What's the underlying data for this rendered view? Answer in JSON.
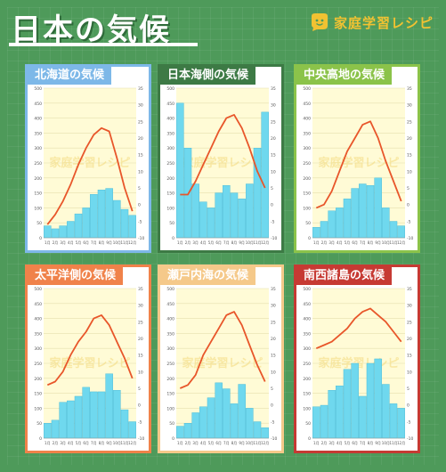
{
  "page": {
    "title": "日本の気候",
    "brand": "家庭学習レシピ",
    "watermark": "家庭学習レシピ"
  },
  "colors": {
    "background": "#4e9a5a",
    "bar": "#6fd8ee",
    "line": "#e8562a",
    "plot_bg": "#fffbd6"
  },
  "chart_data": [
    {
      "type": "bar",
      "title": "北海道の気候",
      "border_color": "#7db8e8",
      "categories": [
        "1月",
        "2月",
        "3月",
        "4月",
        "5月",
        "6月",
        "7月",
        "8月",
        "9月",
        "10月",
        "11月",
        "12月"
      ],
      "ylim": [
        0,
        500
      ],
      "y_ticks": [
        "0",
        "50",
        "100",
        "150",
        "200",
        "250",
        "300",
        "350",
        "400",
        "450",
        "500"
      ],
      "y2lim": [
        -10,
        35
      ],
      "y2_ticks": [
        "-10",
        "-5",
        "0",
        "5",
        "10",
        "15",
        "20",
        "25",
        "30",
        "35"
      ],
      "series": [
        {
          "kind": "bar",
          "values": [
            40,
            30,
            40,
            55,
            80,
            100,
            145,
            160,
            165,
            125,
            95,
            75
          ]
        },
        {
          "kind": "line",
          "values": [
            -6,
            -3,
            1,
            6,
            12,
            17,
            21,
            23,
            22,
            14,
            5,
            -2
          ]
        }
      ]
    },
    {
      "type": "bar",
      "title": "日本海側の気候",
      "border_color": "#3d7a45",
      "categories": [
        "1月",
        "2月",
        "3月",
        "4月",
        "5月",
        "6月",
        "7月",
        "8月",
        "9月",
        "10月",
        "11月",
        "12月"
      ],
      "ylim": [
        0,
        500
      ],
      "y_ticks": [
        "0",
        "50",
        "100",
        "150",
        "200",
        "250",
        "300",
        "350",
        "400",
        "450",
        "500"
      ],
      "y2lim": [
        -10,
        35
      ],
      "y2_ticks": [
        "-10",
        "-5",
        "0",
        "5",
        "10",
        "15",
        "20",
        "25",
        "30",
        "35"
      ],
      "series": [
        {
          "kind": "bar",
          "values": [
            450,
            300,
            180,
            120,
            100,
            150,
            175,
            150,
            130,
            180,
            300,
            420
          ]
        },
        {
          "kind": "line",
          "values": [
            3,
            3,
            7,
            12,
            17,
            22,
            26,
            27,
            23,
            17,
            10,
            5
          ]
        }
      ]
    },
    {
      "type": "bar",
      "title": "中央高地の気候",
      "border_color": "#8bc34a",
      "categories": [
        "1月",
        "2月",
        "3月",
        "4月",
        "5月",
        "6月",
        "7月",
        "8月",
        "9月",
        "10月",
        "11月",
        "12月"
      ],
      "ylim": [
        0,
        500
      ],
      "y_ticks": [
        "0",
        "50",
        "100",
        "150",
        "200",
        "250",
        "300",
        "350",
        "400",
        "450",
        "500"
      ],
      "y2lim": [
        -10,
        35
      ],
      "y2_ticks": [
        "-10",
        "-5",
        "0",
        "5",
        "10",
        "15",
        "20",
        "25",
        "30",
        "35"
      ],
      "series": [
        {
          "kind": "bar",
          "values": [
            35,
            55,
            90,
            100,
            130,
            165,
            180,
            175,
            200,
            100,
            55,
            40
          ]
        },
        {
          "kind": "line",
          "values": [
            -1,
            0,
            4,
            10,
            16,
            20,
            24,
            25,
            20,
            13,
            7,
            1
          ]
        }
      ]
    },
    {
      "type": "bar",
      "title": "太平洋側の気候",
      "border_color": "#f0824a",
      "categories": [
        "1月",
        "2月",
        "3月",
        "4月",
        "5月",
        "6月",
        "7月",
        "8月",
        "9月",
        "10月",
        "11月",
        "12月"
      ],
      "ylim": [
        0,
        500
      ],
      "y_ticks": [
        "0",
        "50",
        "100",
        "150",
        "200",
        "250",
        "300",
        "350",
        "400",
        "450",
        "500"
      ],
      "y2lim": [
        -10,
        35
      ],
      "y2_ticks": [
        "-10",
        "-5",
        "0",
        "5",
        "10",
        "15",
        "20",
        "25",
        "30",
        "35"
      ],
      "series": [
        {
          "kind": "bar",
          "values": [
            50,
            60,
            120,
            125,
            140,
            170,
            155,
            155,
            215,
            160,
            95,
            55
          ]
        },
        {
          "kind": "line",
          "values": [
            6,
            7,
            10,
            15,
            19,
            22,
            26,
            27,
            24,
            19,
            14,
            8
          ]
        }
      ]
    },
    {
      "type": "bar",
      "title": "瀬戸内海の気候",
      "border_color": "#f5c98a",
      "categories": [
        "1月",
        "2月",
        "3月",
        "4月",
        "5月",
        "6月",
        "7月",
        "8月",
        "9月",
        "10月",
        "11月",
        "12月"
      ],
      "ylim": [
        0,
        500
      ],
      "y_ticks": [
        "0",
        "50",
        "100",
        "150",
        "200",
        "250",
        "300",
        "350",
        "400",
        "450",
        "500"
      ],
      "y2lim": [
        -10,
        35
      ],
      "y2_ticks": [
        "-10",
        "-5",
        "0",
        "5",
        "10",
        "15",
        "20",
        "25",
        "30",
        "35"
      ],
      "series": [
        {
          "kind": "bar",
          "values": [
            40,
            50,
            85,
            105,
            135,
            185,
            165,
            115,
            180,
            100,
            55,
            35
          ]
        },
        {
          "kind": "line",
          "values": [
            5,
            6,
            9,
            15,
            19,
            23,
            27,
            28,
            24,
            18,
            12,
            7
          ]
        }
      ]
    },
    {
      "type": "bar",
      "title": "南西諸島の気候",
      "border_color": "#c63a33",
      "categories": [
        "1月",
        "2月",
        "3月",
        "4月",
        "5月",
        "6月",
        "7月",
        "8月",
        "9月",
        "10月",
        "11月",
        "12月"
      ],
      "ylim": [
        0,
        500
      ],
      "y_ticks": [
        "0",
        "50",
        "100",
        "150",
        "200",
        "250",
        "300",
        "350",
        "400",
        "450",
        "500"
      ],
      "y2lim": [
        -10,
        35
      ],
      "y2_ticks": [
        "-10",
        "-5",
        "0",
        "5",
        "10",
        "15",
        "20",
        "25",
        "30",
        "35"
      ],
      "series": [
        {
          "kind": "bar",
          "values": [
            105,
            110,
            160,
            175,
            230,
            250,
            140,
            250,
            265,
            180,
            115,
            100
          ]
        },
        {
          "kind": "line",
          "values": [
            17,
            18,
            19,
            21,
            23,
            26,
            28,
            29,
            27,
            25,
            22,
            19
          ]
        }
      ]
    }
  ]
}
